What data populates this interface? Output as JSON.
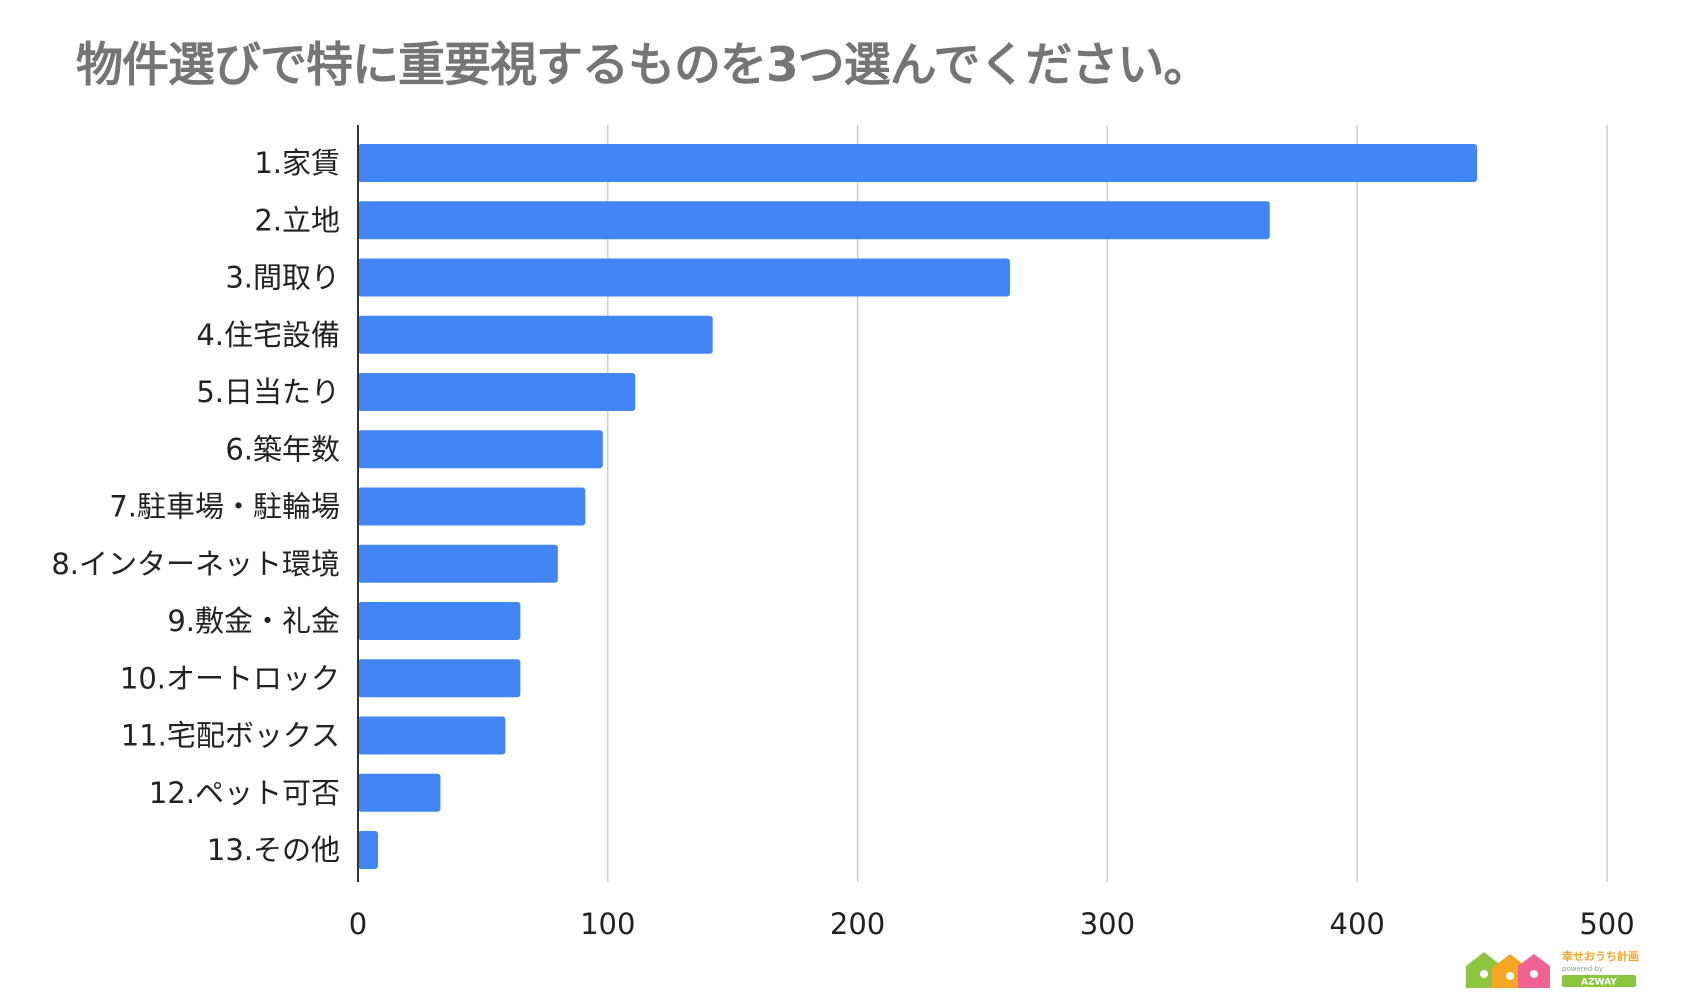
{
  "chart_data": {
    "type": "bar",
    "orientation": "horizontal",
    "title": "物件選びで特に重要視するものを3つ選んでください。",
    "categories": [
      "1.家賃",
      "2.立地",
      "3.間取り",
      "4.住宅設備",
      "5.日当たり",
      "6.築年数",
      "7.駐車場・駐輪場",
      "8.インターネット環境",
      "9.敷金・礼金",
      "10.オートロック",
      "11.宅配ボックス",
      "12.ペット可否",
      "13.その他"
    ],
    "values": [
      448,
      365,
      261,
      142,
      111,
      98,
      91,
      80,
      65,
      65,
      59,
      33,
      8
    ],
    "xlim": [
      0,
      500
    ],
    "xticks": [
      "0",
      "100",
      "200",
      "300",
      "400",
      "500"
    ],
    "grid": true,
    "colors": {
      "bar": "#4285f4",
      "grid": "#cccccc",
      "axis": "#333333",
      "title": "#757575"
    }
  },
  "logo": {
    "text_main": "幸せおうち計画",
    "text_sub": "powered by",
    "text_badge": "AZWAY",
    "colors": {
      "house1": "#8cc63f",
      "house2": "#f6a623",
      "house3": "#f06292",
      "text": "#f6a623",
      "badge": "#8cc63f"
    }
  }
}
